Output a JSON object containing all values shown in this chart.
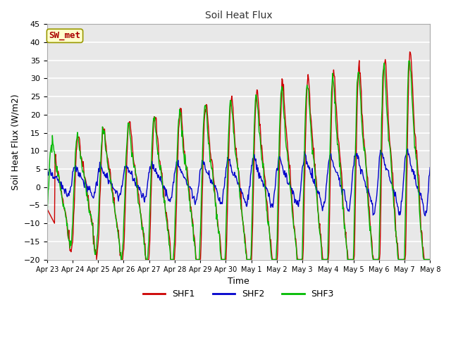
{
  "title": "Soil Heat Flux",
  "xlabel": "Time",
  "ylabel": "Soil Heat Flux (W/m2)",
  "ylim": [
    -20,
    45
  ],
  "yticks": [
    -20,
    -15,
    -10,
    -5,
    0,
    5,
    10,
    15,
    20,
    25,
    30,
    35,
    40,
    45
  ],
  "legend_label": "SW_met",
  "legend_box_color": "#ffffcc",
  "legend_box_edge": "#999900",
  "legend_text_color": "#aa0000",
  "series_labels": [
    "SHF1",
    "SHF2",
    "SHF3"
  ],
  "series_colors": [
    "#cc0000",
    "#0000cc",
    "#00bb00"
  ],
  "tick_labels": [
    "Apr 23",
    "Apr 24",
    "Apr 25",
    "Apr 26",
    "Apr 27",
    "Apr 28",
    "Apr 29",
    "Apr 30",
    "May 1",
    "May 2",
    "May 3",
    "May 4",
    "May 5",
    "May 6",
    "May 7",
    "May 8"
  ],
  "plot_bg_color": "#e8e8e8",
  "fig_bg_color": "#ffffff",
  "grid_color": "#ffffff",
  "n_points": 720
}
